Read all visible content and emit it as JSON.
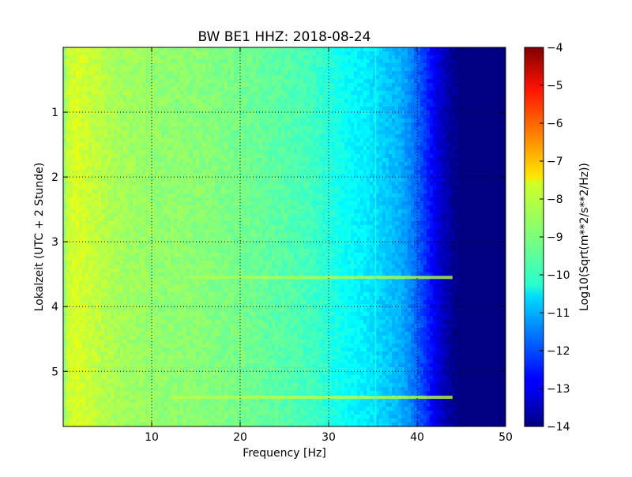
{
  "chart_data": {
    "type": "heatmap",
    "title": "BW BE1 HHZ: 2018-08-24",
    "xlabel": "Frequency [Hz]",
    "ylabel": "Lokalzeit (UTC + 2 Stunde)",
    "xlim": [
      0,
      50
    ],
    "ylim": [
      5.85,
      0
    ],
    "x_ticks": [
      10,
      20,
      30,
      40,
      50
    ],
    "y_ticks": [
      1,
      2,
      3,
      4,
      5
    ],
    "grid": true,
    "colormap": "jet",
    "colorbar": {
      "label": "Log10(Sqrt(m**2/s**2/Hz))",
      "range": [
        -14,
        -4
      ],
      "ticks": [
        -4,
        -5,
        -6,
        -7,
        -8,
        -9,
        -10,
        -11,
        -12,
        -13,
        -14
      ]
    },
    "frequency_profile": {
      "frequency_hz": [
        0,
        0.5,
        1.5,
        3,
        6,
        10,
        15,
        20,
        25,
        28,
        30,
        32,
        34,
        36,
        38,
        39,
        40,
        41,
        42,
        43,
        44,
        45,
        50
      ],
      "log10_amplitude": [
        -9.0,
        -8.3,
        -8.1,
        -8.3,
        -8.6,
        -8.8,
        -8.9,
        -9.1,
        -9.4,
        -9.6,
        -9.9,
        -10.2,
        -10.4,
        -10.7,
        -11.0,
        -11.3,
        -11.8,
        -12.3,
        -12.9,
        -13.4,
        -13.8,
        -14.0,
        -14.0
      ]
    },
    "time_features": [
      {
        "time_hours": 3.55,
        "freq_range_hz": [
          14,
          44
        ],
        "log10_amplitude": -8.5
      },
      {
        "time_hours": 5.4,
        "freq_range_hz": [
          12,
          44
        ],
        "log10_amplitude": -8.4
      }
    ],
    "spectral_lines": [
      {
        "frequency_hz": 35.3,
        "log10_amplitude": -10.0
      }
    ]
  }
}
